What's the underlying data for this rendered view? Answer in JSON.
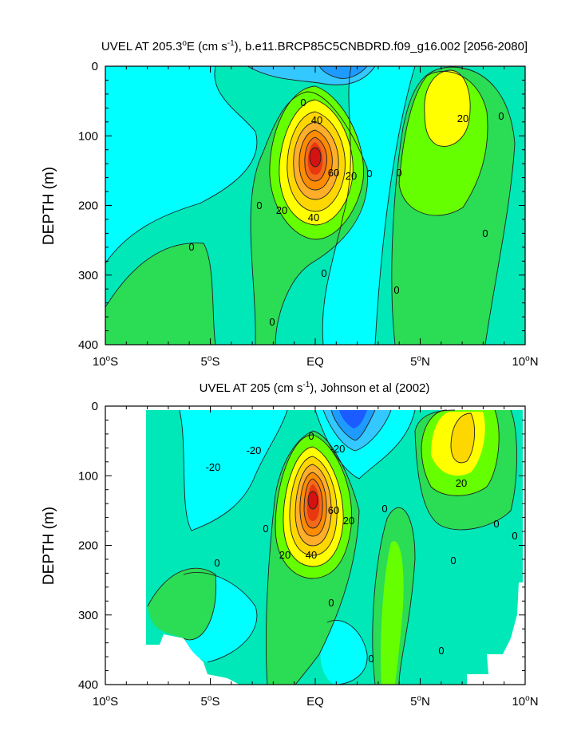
{
  "colors": {
    "strong_neg": "#1a5cff",
    "mid_neg": "#1e9bff",
    "weak_neg": "#33c8ff",
    "light_neg": "#00ffff",
    "near_zero": "#00e8b8",
    "pos_10": "#2bdc55",
    "pos_20": "#66ff00",
    "pos_30": "#ffff00",
    "pos_40": "#ffd700",
    "pos_50": "#ffae2a",
    "pos_60": "#ff8c00",
    "pos_70": "#f26a1a",
    "pos_80": "#e8380d",
    "pos_90": "#d41212"
  },
  "chart_data": [
    {
      "type": "contour",
      "title_main": "UVEL AT 205.3",
      "title_deg": "o",
      "title_units": "E (cm s",
      "title_exp": "-1",
      "title_tail": "), b.e11.BRCP85C5CNBDRD.f09_g16.002 [2056-2080]",
      "ylabel": "DEPTH (m)",
      "x_ticks": [
        {
          "pos": -10,
          "num": "10",
          "deg": "o",
          "hem": "S"
        },
        {
          "pos": -5,
          "num": "5",
          "deg": "o",
          "hem": "S"
        },
        {
          "pos": 0,
          "num": "EQ",
          "deg": "",
          "hem": ""
        },
        {
          "pos": 5,
          "num": "5",
          "deg": "o",
          "hem": "N"
        },
        {
          "pos": 10,
          "num": "10",
          "deg": "o",
          "hem": "N"
        }
      ],
      "y_ticks": [
        "0",
        "100",
        "200",
        "300",
        "400"
      ],
      "xlim": [
        -10,
        10
      ],
      "ylim": [
        0,
        400
      ],
      "undercurrent_core": {
        "lat": 0,
        "depth": 130,
        "max": 90
      },
      "contour_labels": [
        "0",
        "40",
        "60",
        "20",
        "20",
        "0",
        "40",
        "0",
        "0",
        "20",
        "0",
        "0",
        "0",
        "0",
        "0",
        "0"
      ]
    },
    {
      "type": "contour",
      "title_main": "UVEL AT 205 (cm s",
      "title_exp": "-1",
      "title_tail": "), Johnson et al (2002)",
      "ylabel": "DEPTH (m)",
      "x_ticks": [
        {
          "pos": -10,
          "num": "10",
          "deg": "o",
          "hem": "S"
        },
        {
          "pos": -5,
          "num": "5",
          "deg": "o",
          "hem": "S"
        },
        {
          "pos": 0,
          "num": "EQ",
          "deg": "",
          "hem": ""
        },
        {
          "pos": 5,
          "num": "5",
          "deg": "o",
          "hem": "N"
        },
        {
          "pos": 10,
          "num": "10",
          "deg": "o",
          "hem": "N"
        }
      ],
      "y_ticks": [
        "0",
        "100",
        "200",
        "300",
        "400"
      ],
      "xlim": [
        -10,
        10
      ],
      "ylim": [
        0,
        400
      ],
      "undercurrent_core": {
        "lat": 0,
        "depth": 130,
        "max": 90
      },
      "contour_labels": [
        "-20",
        "-20",
        "0",
        "-20",
        "60",
        "20",
        "40",
        "20",
        "0",
        "20",
        "0",
        "0",
        "0",
        "0",
        "0",
        "0",
        "0",
        "0"
      ]
    }
  ]
}
